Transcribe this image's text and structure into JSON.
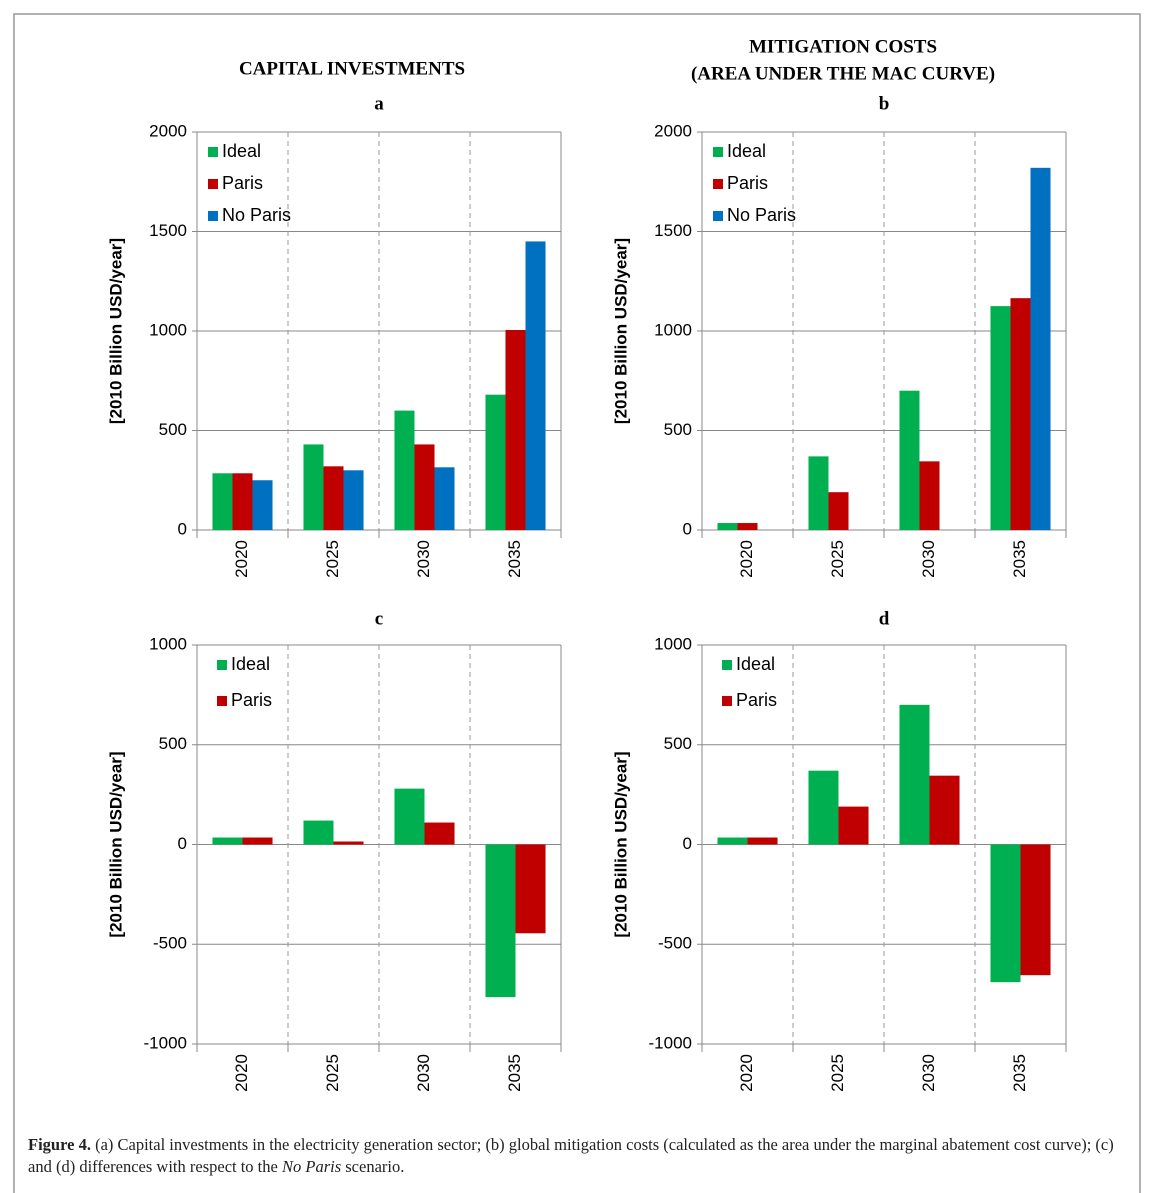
{
  "column_headers": [
    "CAPITAL INVESTMENTS",
    "MITIGATION COSTS",
    "(AREA UNDER THE MAC CURVE)"
  ],
  "chart_data": [
    {
      "type": "bar",
      "title": "a",
      "y_label": "[2010 Billion USD/year]",
      "categories": [
        "2020",
        "2025",
        "2030",
        "2035"
      ],
      "series": [
        {
          "name": "Ideal",
          "color": "#00b050",
          "values": [
            285,
            430,
            600,
            680
          ]
        },
        {
          "name": "Paris",
          "color": "#c00000",
          "values": [
            285,
            320,
            430,
            1005
          ]
        },
        {
          "name": "No Paris",
          "color": "#0070c0",
          "values": [
            250,
            300,
            315,
            1450
          ]
        }
      ],
      "ylim": [
        0,
        2000
      ],
      "yticks": [
        0,
        500,
        1000,
        1500,
        2000
      ],
      "grid": true,
      "legend": "upper-left"
    },
    {
      "type": "bar",
      "title": "b",
      "y_label": "[2010 Billion USD/year]",
      "categories": [
        "2020",
        "2025",
        "2030",
        "2035"
      ],
      "series": [
        {
          "name": "Ideal",
          "color": "#00b050",
          "values": [
            35,
            370,
            700,
            1125
          ]
        },
        {
          "name": "Paris",
          "color": "#c00000",
          "values": [
            35,
            190,
            345,
            1165
          ]
        },
        {
          "name": "No Paris",
          "color": "#0070c0",
          "values": [
            0,
            0,
            0,
            1820
          ]
        }
      ],
      "ylim": [
        0,
        2000
      ],
      "yticks": [
        0,
        500,
        1000,
        1500,
        2000
      ],
      "grid": true,
      "legend": "upper-left"
    },
    {
      "type": "bar",
      "title": "c",
      "y_label": "[2010 Billion USD/year]",
      "categories": [
        "2020",
        "2025",
        "2030",
        "2035"
      ],
      "series": [
        {
          "name": "Ideal",
          "color": "#00b050",
          "values": [
            35,
            120,
            280,
            -765
          ]
        },
        {
          "name": "Paris",
          "color": "#c00000",
          "values": [
            35,
            15,
            110,
            -445
          ]
        }
      ],
      "ylim": [
        -1000,
        1000
      ],
      "yticks": [
        -1000,
        -500,
        0,
        500,
        1000
      ],
      "grid": true,
      "legend": "upper-left"
    },
    {
      "type": "bar",
      "title": "d",
      "y_label": "[2010 Billion USD/year]",
      "categories": [
        "2020",
        "2025",
        "2030",
        "2035"
      ],
      "series": [
        {
          "name": "Ideal",
          "color": "#00b050",
          "values": [
            35,
            370,
            700,
            -690
          ]
        },
        {
          "name": "Paris",
          "color": "#c00000",
          "values": [
            35,
            190,
            345,
            -655
          ]
        }
      ],
      "ylim": [
        -1000,
        1000
      ],
      "yticks": [
        -1000,
        -500,
        0,
        500,
        1000
      ],
      "grid": true,
      "legend": "upper-left"
    }
  ],
  "caption": {
    "label": "Figure 4.",
    "text": " (a) Capital investments in the electricity generation sector; (b) global mitigation costs (calculated as the area under the marginal abatement cost curve); (c) and (d) differences with respect to the ",
    "emphasis": "No Paris",
    "end": " scenario."
  }
}
